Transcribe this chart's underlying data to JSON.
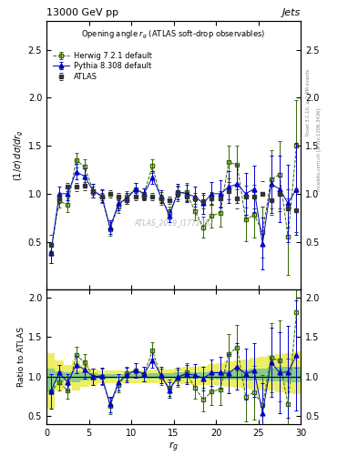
{
  "title": "13000 GeV pp",
  "title_right": "Jets",
  "plot_title": "Opening angle $r_g$ (ATLAS soft-drop observables)",
  "xlabel": "$r_g$",
  "ylabel": "$(1/\\sigma)\\,d\\sigma/dr_g$",
  "ylabel_ratio": "Ratio to ATLAS",
  "watermark": "ATLAS_2019_I1772062",
  "rivet_text": "Rivet 3.1.10, ≥ 2.9M events",
  "arxiv_text": "mcplots.cern.ch [arXiv:1306.3436]",
  "atlas_x": [
    0.5,
    1.5,
    2.5,
    3.5,
    4.5,
    5.5,
    6.5,
    7.5,
    8.5,
    9.5,
    10.5,
    11.5,
    12.5,
    13.5,
    14.5,
    15.5,
    16.5,
    17.5,
    18.5,
    19.5,
    20.5,
    21.5,
    22.5,
    23.5,
    24.5,
    25.5,
    26.5,
    27.5,
    28.5,
    29.5
  ],
  "atlas_y": [
    0.47,
    0.95,
    1.07,
    1.07,
    1.08,
    1.03,
    0.97,
    1.0,
    0.97,
    0.93,
    0.97,
    0.97,
    0.97,
    0.95,
    0.93,
    1.02,
    0.97,
    0.95,
    0.92,
    0.95,
    0.95,
    1.03,
    0.95,
    0.97,
    0.97,
    1.0,
    0.93,
    1.0,
    0.85,
    0.83
  ],
  "atlas_yerr": [
    0.1,
    0.05,
    0.04,
    0.04,
    0.04,
    0.04,
    0.04,
    0.04,
    0.04,
    0.04,
    0.04,
    0.04,
    0.04,
    0.04,
    0.04,
    0.05,
    0.05,
    0.06,
    0.07,
    0.07,
    0.08,
    0.09,
    0.1,
    0.11,
    0.12,
    0.13,
    0.15,
    0.18,
    0.2,
    0.23
  ],
  "herwig_x": [
    0.5,
    1.5,
    2.5,
    3.5,
    4.5,
    5.5,
    6.5,
    7.5,
    8.5,
    9.5,
    10.5,
    11.5,
    12.5,
    13.5,
    14.5,
    15.5,
    16.5,
    17.5,
    18.5,
    19.5,
    20.5,
    21.5,
    22.5,
    23.5,
    24.5,
    25.5,
    26.5,
    27.5,
    28.5,
    29.5
  ],
  "herwig_y": [
    0.38,
    0.93,
    0.88,
    1.35,
    1.28,
    1.03,
    0.97,
    0.63,
    0.87,
    0.97,
    1.05,
    1.0,
    1.29,
    0.95,
    0.8,
    1.0,
    1.02,
    0.82,
    0.65,
    0.77,
    0.8,
    1.33,
    1.3,
    0.73,
    0.78,
    0.6,
    1.15,
    1.2,
    0.55,
    1.5
  ],
  "herwig_yerr": [
    0.1,
    0.07,
    0.07,
    0.08,
    0.08,
    0.07,
    0.07,
    0.07,
    0.07,
    0.06,
    0.06,
    0.06,
    0.07,
    0.07,
    0.07,
    0.08,
    0.09,
    0.1,
    0.11,
    0.12,
    0.14,
    0.17,
    0.2,
    0.22,
    0.24,
    0.27,
    0.3,
    0.35,
    0.4,
    0.48
  ],
  "pythia_x": [
    0.5,
    1.5,
    2.5,
    3.5,
    4.5,
    5.5,
    6.5,
    7.5,
    8.5,
    9.5,
    10.5,
    11.5,
    12.5,
    13.5,
    14.5,
    15.5,
    16.5,
    17.5,
    18.5,
    19.5,
    20.5,
    21.5,
    22.5,
    23.5,
    24.5,
    25.5,
    26.5,
    27.5,
    28.5,
    29.5
  ],
  "pythia_y": [
    0.38,
    1.0,
    1.0,
    1.23,
    1.18,
    1.03,
    0.98,
    0.65,
    0.9,
    0.95,
    1.05,
    1.0,
    1.17,
    0.97,
    0.77,
    1.02,
    1.0,
    0.97,
    0.9,
    1.0,
    1.0,
    1.07,
    1.1,
    1.0,
    1.05,
    0.48,
    1.1,
    1.05,
    0.9,
    1.05
  ],
  "pythia_yerr": [
    0.1,
    0.07,
    0.07,
    0.08,
    0.08,
    0.07,
    0.07,
    0.07,
    0.07,
    0.06,
    0.06,
    0.06,
    0.07,
    0.07,
    0.07,
    0.08,
    0.09,
    0.1,
    0.11,
    0.12,
    0.14,
    0.17,
    0.2,
    0.22,
    0.24,
    0.27,
    0.3,
    0.35,
    0.4,
    0.48
  ],
  "ratio_herwig_y": [
    0.81,
    0.93,
    0.82,
    1.27,
    1.18,
    1.0,
    1.0,
    0.63,
    0.9,
    1.04,
    1.08,
    1.03,
    1.33,
    1.0,
    0.86,
    0.98,
    1.05,
    0.86,
    0.71,
    0.81,
    0.84,
    1.29,
    1.37,
    0.75,
    0.8,
    0.64,
    1.24,
    1.2,
    0.65,
    1.81
  ],
  "ratio_herwig_yerr": [
    0.22,
    0.1,
    0.1,
    0.11,
    0.11,
    0.1,
    0.1,
    0.1,
    0.1,
    0.09,
    0.09,
    0.09,
    0.1,
    0.1,
    0.1,
    0.11,
    0.12,
    0.14,
    0.15,
    0.17,
    0.2,
    0.25,
    0.29,
    0.32,
    0.34,
    0.38,
    0.44,
    0.51,
    0.58,
    0.7
  ],
  "ratio_pythia_y": [
    0.81,
    1.05,
    0.93,
    1.15,
    1.09,
    1.0,
    1.01,
    0.65,
    0.93,
    1.02,
    1.08,
    1.03,
    1.21,
    1.02,
    0.83,
    1.0,
    1.03,
    1.02,
    0.98,
    1.05,
    1.05,
    1.04,
    1.13,
    1.03,
    1.08,
    0.54,
    1.18,
    1.05,
    1.06,
    1.27
  ],
  "ratio_pythia_yerr": [
    0.22,
    0.1,
    0.1,
    0.11,
    0.11,
    0.1,
    0.1,
    0.1,
    0.1,
    0.09,
    0.09,
    0.09,
    0.1,
    0.1,
    0.1,
    0.11,
    0.12,
    0.14,
    0.15,
    0.17,
    0.2,
    0.25,
    0.29,
    0.32,
    0.34,
    0.38,
    0.44,
    0.51,
    0.58,
    0.7
  ],
  "band_x_edges": [
    0,
    1,
    2,
    3,
    4,
    5,
    6,
    7,
    8,
    9,
    10,
    11,
    12,
    13,
    14,
    15,
    16,
    17,
    18,
    19,
    20,
    21,
    22,
    23,
    24,
    25,
    26,
    27,
    28,
    29,
    30
  ],
  "band_green_low": [
    0.8,
    0.93,
    0.95,
    0.93,
    0.95,
    0.96,
    0.97,
    0.97,
    0.97,
    0.97,
    0.97,
    0.97,
    0.97,
    0.97,
    0.97,
    0.97,
    0.97,
    0.97,
    0.97,
    0.97,
    0.96,
    0.96,
    0.96,
    0.95,
    0.95,
    0.95,
    0.94,
    0.94,
    0.93,
    0.93
  ],
  "band_green_high": [
    1.1,
    1.07,
    1.05,
    1.07,
    1.05,
    1.04,
    1.03,
    1.03,
    1.03,
    1.03,
    1.03,
    1.03,
    1.04,
    1.04,
    1.04,
    1.05,
    1.05,
    1.06,
    1.06,
    1.07,
    1.07,
    1.08,
    1.08,
    1.09,
    1.1,
    1.1,
    1.11,
    1.12,
    1.12,
    1.13
  ],
  "band_yellow_low": [
    0.6,
    0.82,
    0.88,
    0.82,
    0.87,
    0.9,
    0.92,
    0.92,
    0.92,
    0.92,
    0.92,
    0.92,
    0.92,
    0.92,
    0.92,
    0.91,
    0.91,
    0.9,
    0.9,
    0.89,
    0.88,
    0.87,
    0.86,
    0.85,
    0.84,
    0.83,
    0.82,
    0.8,
    0.79,
    0.78
  ],
  "band_yellow_high": [
    1.3,
    1.2,
    1.15,
    1.2,
    1.15,
    1.1,
    1.08,
    1.08,
    1.08,
    1.08,
    1.08,
    1.08,
    1.09,
    1.09,
    1.09,
    1.11,
    1.12,
    1.13,
    1.14,
    1.16,
    1.17,
    1.19,
    1.2,
    1.22,
    1.24,
    1.25,
    1.27,
    1.29,
    1.3,
    1.32
  ],
  "xlim": [
    0,
    30
  ],
  "ylim_main": [
    0.0,
    2.8
  ],
  "ylim_ratio": [
    0.4,
    2.1
  ],
  "yticks_main": [
    0.5,
    1.0,
    1.5,
    2.0,
    2.5
  ],
  "yticks_ratio": [
    0.5,
    1.0,
    1.5,
    2.0
  ],
  "xticks": [
    0,
    5,
    10,
    15,
    20,
    25,
    30
  ],
  "color_atlas": "#333333",
  "color_herwig": "#336600",
  "color_pythia": "#0000cc",
  "color_band_green": "#88cc88",
  "color_band_yellow": "#eeee66",
  "legend_labels": [
    "ATLAS",
    "Herwig 7.2.1 default",
    "Pythia 8.308 default"
  ]
}
